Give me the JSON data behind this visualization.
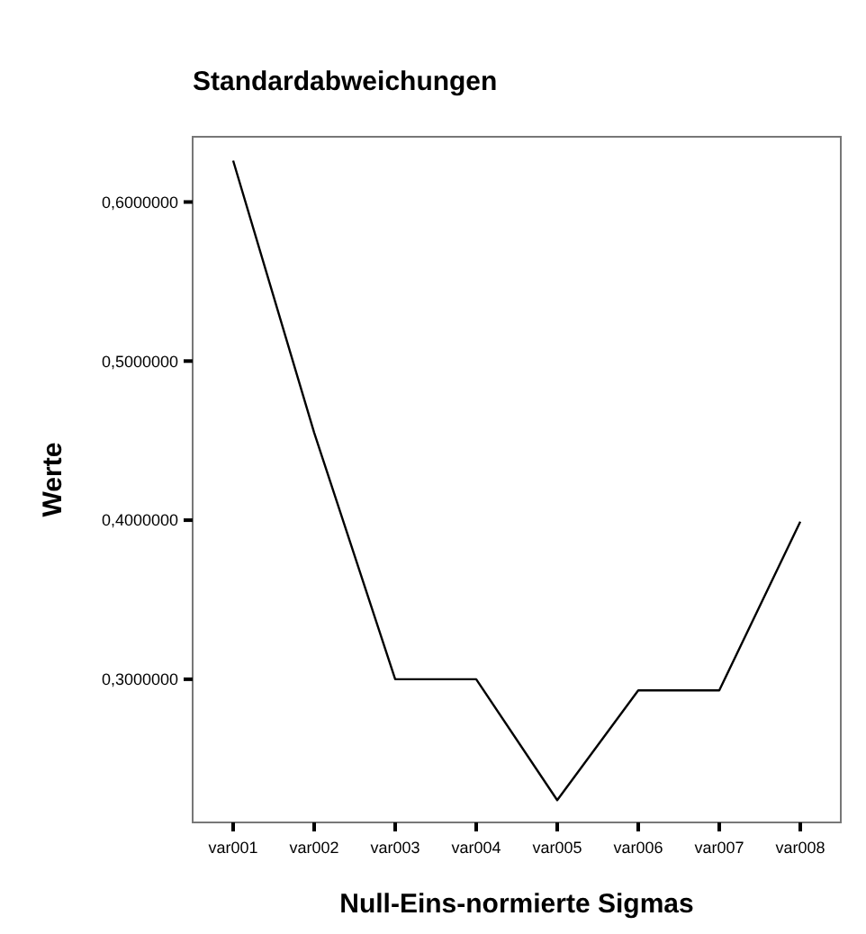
{
  "chart_data": {
    "type": "line",
    "title": "Standardabweichungen",
    "xlabel": "Null-Eins-normierte Sigmas",
    "ylabel": "Werte",
    "categories": [
      "var001",
      "var002",
      "var003",
      "var004",
      "var005",
      "var006",
      "var007",
      "var008"
    ],
    "series": [
      {
        "color": "#000000",
        "values": [
          0.626,
          0.455,
          0.3,
          0.3,
          0.224,
          0.293,
          0.293,
          0.399
        ]
      }
    ],
    "ylim": [
      0.21,
      0.641
    ],
    "yticks": [
      {
        "value": 0.3,
        "label": "0,3000000"
      },
      {
        "value": 0.4,
        "label": "0,4000000"
      },
      {
        "value": 0.5,
        "label": "0,5000000"
      },
      {
        "value": 0.6,
        "label": "0,6000000"
      }
    ],
    "grid": false,
    "marker": "none",
    "line_style": "solid"
  }
}
